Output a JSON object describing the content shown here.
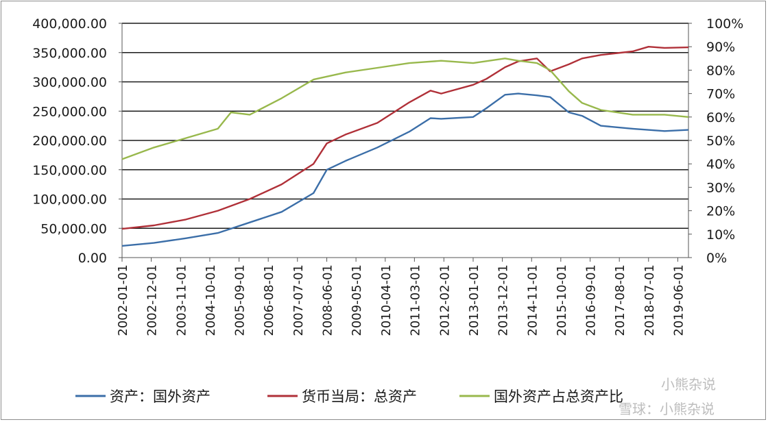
{
  "chart_data": {
    "type": "line",
    "title": "",
    "xlabel": "",
    "ylabel": "",
    "y_left": {
      "ylim": [
        0,
        400000
      ],
      "ticks": [
        "0.00",
        "50,000.00",
        "100,000.00",
        "150,000.00",
        "200,000.00",
        "250,000.00",
        "300,000.00",
        "350,000.00",
        "400,000.00"
      ]
    },
    "y_right": {
      "ylim": [
        0,
        100
      ],
      "ticks": [
        "0%",
        "10%",
        "20%",
        "30%",
        "40%",
        "50%",
        "60%",
        "70%",
        "80%",
        "90%",
        "100%"
      ]
    },
    "x_ticks": [
      "2002-01-01",
      "2002-12-01",
      "2003-11-01",
      "2004-10-01",
      "2005-09-01",
      "2006-08-01",
      "2007-07-01",
      "2008-06-01",
      "2009-05-01",
      "2010-04-01",
      "2011-03-01",
      "2012-02-01",
      "2013-01-01",
      "2013-12-01",
      "2014-11-01",
      "2015-10-01",
      "2016-09-01",
      "2017-08-01",
      "2018-07-01",
      "2019-06-01"
    ],
    "x_range": [
      "2002-01-01",
      "2019-10-01"
    ],
    "grid": true,
    "legend_position": "bottom",
    "series": [
      {
        "name": "资产：国外资产",
        "axis": "left",
        "color": "#3b6ea8",
        "x": [
          "2002-01-01",
          "2003-01-01",
          "2004-01-01",
          "2005-01-01",
          "2006-01-01",
          "2007-01-01",
          "2008-01-01",
          "2008-06-01",
          "2009-01-01",
          "2010-01-01",
          "2011-01-01",
          "2011-09-01",
          "2012-01-01",
          "2013-01-01",
          "2013-06-01",
          "2014-01-01",
          "2014-06-01",
          "2015-01-01",
          "2015-06-01",
          "2016-01-01",
          "2016-06-01",
          "2017-01-01",
          "2018-01-01",
          "2019-01-01",
          "2019-10-01"
        ],
        "values": [
          20000,
          25000,
          33000,
          42000,
          60000,
          78000,
          110000,
          150000,
          165000,
          188000,
          215000,
          238000,
          237000,
          240000,
          255000,
          278000,
          280000,
          277000,
          274000,
          248000,
          242000,
          225000,
          220000,
          216000,
          218000
        ]
      },
      {
        "name": "货币当局：总资产",
        "axis": "left",
        "color": "#b03038",
        "x": [
          "2002-01-01",
          "2003-01-01",
          "2004-01-01",
          "2005-01-01",
          "2006-01-01",
          "2007-01-01",
          "2008-01-01",
          "2008-06-01",
          "2009-01-01",
          "2010-01-01",
          "2011-01-01",
          "2011-09-01",
          "2012-01-01",
          "2013-01-01",
          "2013-06-01",
          "2014-01-01",
          "2014-06-01",
          "2015-01-01",
          "2015-06-01",
          "2016-01-01",
          "2016-06-01",
          "2017-01-01",
          "2018-01-01",
          "2018-07-01",
          "2019-01-01",
          "2019-10-01"
        ],
        "values": [
          49000,
          55000,
          65000,
          80000,
          100000,
          125000,
          160000,
          195000,
          210000,
          230000,
          265000,
          285000,
          280000,
          295000,
          305000,
          325000,
          335000,
          340000,
          318000,
          330000,
          340000,
          346000,
          352000,
          360000,
          358000,
          359000
        ]
      },
      {
        "name": "国外资产占总资产比",
        "axis": "right",
        "color": "#98b84c",
        "x": [
          "2002-01-01",
          "2003-01-01",
          "2004-01-01",
          "2005-01-01",
          "2005-06-01",
          "2006-01-01",
          "2007-01-01",
          "2008-01-01",
          "2009-01-01",
          "2010-01-01",
          "2011-01-01",
          "2012-01-01",
          "2013-01-01",
          "2014-01-01",
          "2014-06-01",
          "2015-01-01",
          "2015-06-01",
          "2016-01-01",
          "2016-06-01",
          "2017-01-01",
          "2018-01-01",
          "2019-01-01",
          "2019-10-01"
        ],
        "values": [
          42,
          47,
          51,
          55,
          62,
          61,
          68,
          76,
          79,
          81,
          83,
          84,
          83,
          85,
          84,
          83,
          80,
          71,
          66,
          63,
          61,
          61,
          60
        ]
      }
    ],
    "legend": [
      "资产：国外资产",
      "货币当局：总资产",
      "国外资产占总资产比"
    ]
  },
  "watermark": {
    "line1": "小熊杂说",
    "line2": "雪球：小熊杂说"
  }
}
